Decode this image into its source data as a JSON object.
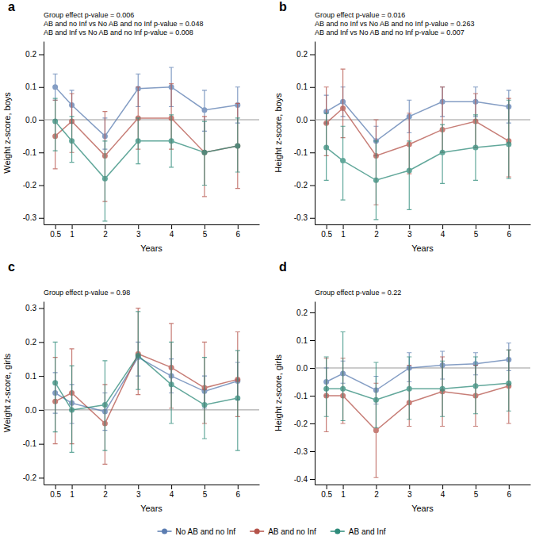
{
  "chart_data": [
    {
      "type": "line",
      "title": "a",
      "y_label": "Weight z-score, boys",
      "x_label": "Years",
      "annotation": "Group effect p-value = 0.006\nAB and no Inf vs No AB and no Inf p-value = 0.048\nAB and Inf vs No AB and no Inf p-value = 0.008",
      "x": [
        0.5,
        1,
        2,
        3,
        4,
        5,
        6
      ],
      "xlim": [
        0.15,
        6.65
      ],
      "xticks": [
        0.5,
        1,
        2,
        3,
        4,
        5,
        6
      ],
      "ylim": [
        -0.32,
        0.24
      ],
      "yticks": [
        -0.3,
        -0.2,
        -0.1,
        {
          "value": 0.0,
          "label": "0.0"
        },
        0.1,
        0.2
      ],
      "hline": 0,
      "marker": "circle",
      "series": [
        {
          "name": "No AB and no Inf",
          "color": "#5B7DB1",
          "values": [
            0.1,
            0.045,
            -0.05,
            0.095,
            0.1,
            0.03,
            0.045
          ],
          "lower": [
            0.06,
            -0.01,
            -0.09,
            0.04,
            0.04,
            -0.035,
            -0.01
          ],
          "upper": [
            0.14,
            0.09,
            0.005,
            0.14,
            0.16,
            0.09,
            0.1
          ]
        },
        {
          "name": "AB and no Inf",
          "color": "#B5534A",
          "values": [
            -0.05,
            -0.005,
            -0.11,
            0.005,
            0.005,
            -0.1,
            -0.08
          ],
          "lower": [
            -0.15,
            -0.1,
            -0.25,
            -0.09,
            -0.09,
            -0.235,
            -0.21
          ],
          "upper": [
            0.06,
            0.08,
            0.025,
            0.1,
            0.11,
            0.01,
            0.05
          ]
        },
        {
          "name": "AB and Inf",
          "color": "#2E8B7A",
          "values": [
            -0.005,
            -0.065,
            -0.18,
            -0.065,
            -0.065,
            -0.1,
            -0.08
          ],
          "lower": [
            -0.095,
            -0.13,
            -0.31,
            -0.135,
            -0.145,
            -0.2,
            -0.16
          ],
          "upper": [
            0.065,
            0.01,
            -0.065,
            0.005,
            0.015,
            -0.005,
            0.005
          ]
        }
      ]
    },
    {
      "type": "line",
      "title": "b",
      "y_label": "Height z-score, boys",
      "x_label": "Years",
      "annotation": "Group effect p-value = 0.016\nAB and no Inf vs No AB and no Inf p-value = 0.263\nAB and Inf vs No AB and no Inf p-value = 0.007",
      "x": [
        0.5,
        1,
        2,
        3,
        4,
        5,
        6
      ],
      "xlim": [
        0.15,
        6.65
      ],
      "xticks": [
        0.5,
        1,
        2,
        3,
        4,
        5,
        6
      ],
      "ylim": [
        -0.32,
        0.24
      ],
      "yticks": [
        -0.3,
        -0.2,
        -0.1,
        {
          "value": 0.0,
          "label": "0.0"
        },
        0.1,
        0.2
      ],
      "hline": 0,
      "marker": "circle",
      "series": [
        {
          "name": "No AB and no Inf",
          "color": "#5B7DB1",
          "values": [
            0.025,
            0.055,
            -0.065,
            0.01,
            0.055,
            0.055,
            0.04
          ],
          "lower": [
            -0.01,
            0.01,
            -0.11,
            -0.04,
            0.01,
            0.01,
            -0.01
          ],
          "upper": [
            0.075,
            0.1,
            -0.02,
            0.06,
            0.1,
            0.1,
            0.09
          ]
        },
        {
          "name": "AB and no Inf",
          "color": "#B5534A",
          "values": [
            -0.01,
            0.035,
            -0.11,
            -0.075,
            -0.03,
            -0.005,
            -0.065
          ],
          "lower": [
            -0.11,
            -0.055,
            -0.26,
            -0.165,
            -0.1,
            -0.085,
            -0.175
          ],
          "upper": [
            0.1,
            0.155,
            0.0,
            0.02,
            0.1,
            0.08,
            0.065
          ]
        },
        {
          "name": "AB and Inf",
          "color": "#2E8B7A",
          "values": [
            -0.085,
            -0.125,
            -0.185,
            -0.155,
            -0.1,
            -0.085,
            -0.075
          ],
          "lower": [
            -0.185,
            -0.245,
            -0.305,
            -0.275,
            -0.195,
            -0.185,
            -0.18
          ],
          "upper": [
            0.02,
            -0.02,
            -0.065,
            -0.065,
            -0.015,
            0.015,
            0.06
          ]
        }
      ]
    },
    {
      "type": "line",
      "title": "c",
      "y_label": "Weight z-score, girls",
      "x_label": "Years",
      "annotation": "Group effect p-value = 0.98",
      "x": [
        0.5,
        1,
        2,
        3,
        4,
        5,
        6
      ],
      "xlim": [
        0.15,
        6.65
      ],
      "xticks": [
        0.5,
        1,
        2,
        3,
        4,
        5,
        6
      ],
      "ylim": [
        -0.22,
        0.32
      ],
      "yticks": [
        -0.2,
        -0.1,
        {
          "value": 0.0,
          "label": "0.0"
        },
        0.1,
        0.2,
        0.3
      ],
      "hline": 0,
      "marker": "circle",
      "series": [
        {
          "name": "No AB and no Inf",
          "color": "#5B7DB1",
          "values": [
            0.05,
            0.02,
            -0.005,
            0.155,
            0.1,
            0.055,
            0.085
          ],
          "lower": [
            -0.01,
            -0.04,
            -0.06,
            0.1,
            0.05,
            0.005,
            0.03
          ],
          "upper": [
            0.11,
            0.075,
            0.05,
            0.2,
            0.15,
            0.1,
            0.14
          ]
        },
        {
          "name": "AB and no Inf",
          "color": "#B5534A",
          "values": [
            0.025,
            0.05,
            -0.04,
            0.165,
            0.125,
            0.065,
            0.09
          ],
          "lower": [
            -0.1,
            -0.1,
            -0.16,
            0.045,
            0.005,
            -0.04,
            -0.02
          ],
          "upper": [
            0.155,
            0.18,
            0.075,
            0.3,
            0.255,
            0.2,
            0.23
          ]
        },
        {
          "name": "AB and Inf",
          "color": "#2E8B7A",
          "values": [
            0.08,
            0.0,
            0.015,
            0.16,
            0.075,
            0.015,
            0.035
          ],
          "lower": [
            -0.065,
            -0.125,
            -0.12,
            0.06,
            -0.04,
            -0.085,
            -0.12
          ],
          "upper": [
            0.2,
            0.13,
            0.145,
            0.29,
            0.2,
            0.155,
            0.175
          ]
        }
      ]
    },
    {
      "type": "line",
      "title": "d",
      "y_label": "Height z-score, girls",
      "x_label": "Years",
      "annotation": "Group effect p-value = 0.22",
      "x": [
        0.5,
        1,
        2,
        3,
        4,
        5,
        6
      ],
      "xlim": [
        0.15,
        6.65
      ],
      "xticks": [
        0.5,
        1,
        2,
        3,
        4,
        5,
        6
      ],
      "ylim": [
        -0.42,
        0.24
      ],
      "yticks": [
        -0.4,
        -0.3,
        -0.2,
        -0.1,
        {
          "value": 0.0,
          "label": "0.0"
        },
        0.1,
        0.2
      ],
      "hline": 0,
      "marker": "circle",
      "legend": "bottom",
      "series": [
        {
          "name": "No AB and no Inf",
          "color": "#5B7DB1",
          "values": [
            -0.05,
            -0.02,
            -0.08,
            0.0,
            0.01,
            0.015,
            0.03
          ],
          "lower": [
            -0.1,
            -0.055,
            -0.13,
            -0.05,
            -0.04,
            -0.025,
            -0.01
          ],
          "upper": [
            0.0,
            0.025,
            -0.03,
            0.055,
            0.06,
            0.055,
            0.09
          ]
        },
        {
          "name": "AB and no Inf",
          "color": "#B5534A",
          "values": [
            -0.1,
            -0.1,
            -0.225,
            -0.125,
            -0.085,
            -0.1,
            -0.065
          ],
          "lower": [
            -0.23,
            -0.2,
            -0.395,
            -0.21,
            -0.21,
            -0.21,
            -0.2
          ],
          "upper": [
            0.035,
            0.035,
            -0.055,
            0.01,
            0.04,
            0.01,
            0.065
          ]
        },
        {
          "name": "AB and Inf",
          "color": "#2E8B7A",
          "values": [
            -0.075,
            -0.075,
            -0.115,
            -0.075,
            -0.075,
            -0.065,
            -0.055
          ],
          "lower": [
            -0.175,
            -0.19,
            -0.215,
            -0.185,
            -0.175,
            -0.165,
            -0.155
          ],
          "upper": [
            0.04,
            0.13,
            0.02,
            0.04,
            0.025,
            0.04,
            0.065
          ]
        }
      ]
    }
  ]
}
